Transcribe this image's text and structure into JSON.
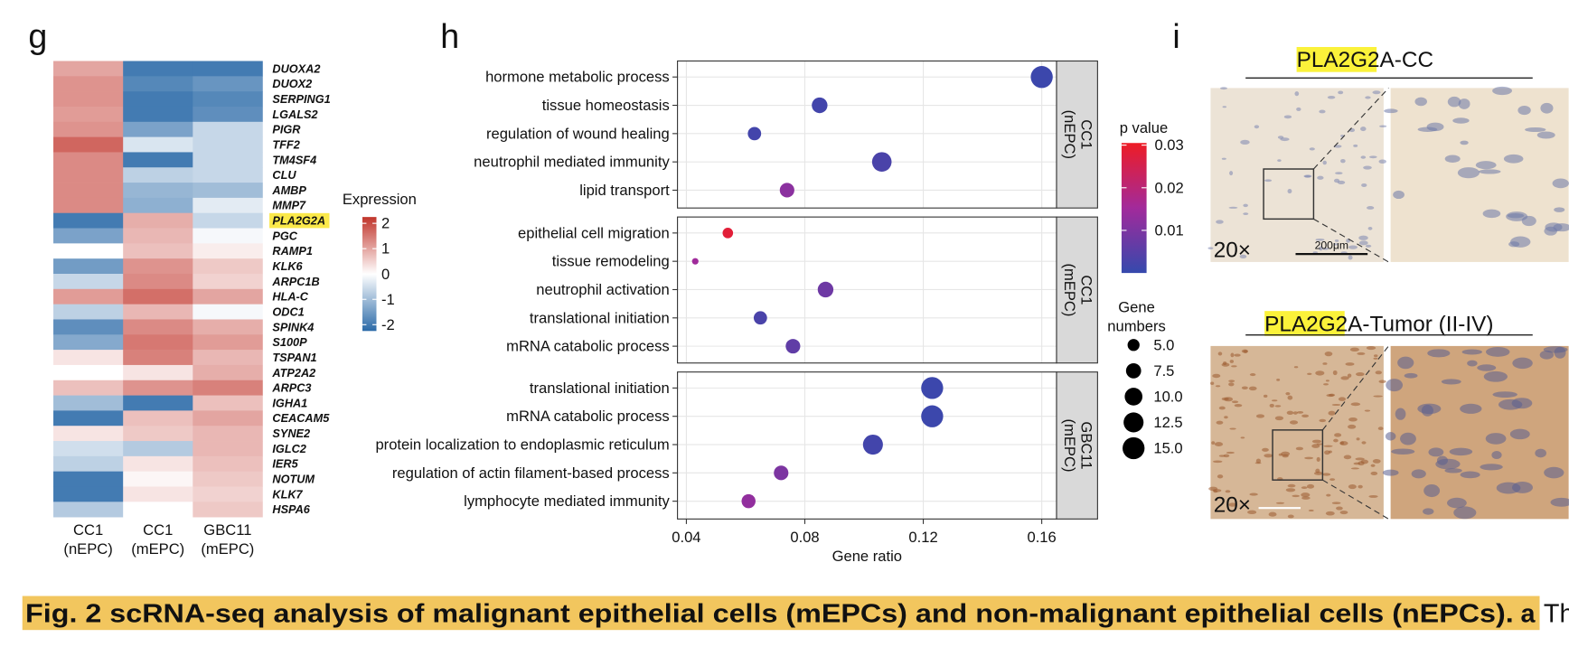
{
  "panel_labels": [
    "g",
    "h",
    "i"
  ],
  "chart_data": [
    {
      "type": "heatmap",
      "rows": [
        "DUOXA2",
        "DUOX2",
        "SERPING1",
        "LGALS2",
        "PIGR",
        "TFF2",
        "TM4SF4",
        "CLU",
        "AMBP",
        "MMP7",
        "PLA2G2A",
        "PGC",
        "RAMP1",
        "KLK6",
        "ARPC1B",
        "HLA-C",
        "ODC1",
        "SPINK4",
        "S100P",
        "TSPAN1",
        "ATP2A2",
        "ARPC3",
        "IGHA1",
        "CEACAM5",
        "SYNE2",
        "IGLC2",
        "IER5",
        "NOTUM",
        "KLK7",
        "HSPA6"
      ],
      "columns": [
        [
          "CC1",
          "(nEPC)"
        ],
        [
          "CC1",
          "(mEPC)"
        ],
        [
          "GBC11",
          "(mEPC)"
        ]
      ],
      "values": [
        [
          1.0,
          -2,
          -2
        ],
        [
          1.2,
          -1.8,
          -1.6
        ],
        [
          1.2,
          -2,
          -1.8
        ],
        [
          1.1,
          -2,
          -1.7
        ],
        [
          1.2,
          -1.4,
          -0.6
        ],
        [
          1.7,
          -0.4,
          -0.6
        ],
        [
          1.3,
          -2,
          -0.6
        ],
        [
          1.3,
          -0.7,
          -0.6
        ],
        [
          1.3,
          -1.1,
          -1.0
        ],
        [
          1.3,
          -1.2,
          -0.3
        ],
        [
          -2,
          0.9,
          -0.6
        ],
        [
          -1.4,
          0.8,
          -0.1
        ],
        [
          0,
          0.7,
          0.2
        ],
        [
          -1.5,
          1.2,
          0.6
        ],
        [
          -0.6,
          1.3,
          0.5
        ],
        [
          1.1,
          1.6,
          1.0
        ],
        [
          -0.7,
          0.8,
          -0.1
        ],
        [
          -1.7,
          1.3,
          0.9
        ],
        [
          -1.3,
          1.5,
          1.1
        ],
        [
          0.3,
          1.4,
          0.8
        ],
        [
          0,
          0.3,
          0.9
        ],
        [
          0.7,
          1.2,
          1.4
        ],
        [
          -1.0,
          -2,
          0.7
        ],
        [
          -2,
          0.7,
          1.0
        ],
        [
          0.3,
          0.6,
          0.8
        ],
        [
          -0.5,
          -0.8,
          0.8
        ],
        [
          -0.7,
          0.3,
          0.7
        ],
        [
          -2,
          0.1,
          0.6
        ],
        [
          -2,
          0.3,
          0.5
        ],
        [
          -0.8,
          0.0,
          0.6
        ]
      ],
      "highlight_row": 10,
      "legend_title": "Expression",
      "clim": [
        -2.25,
        2.25
      ],
      "cticks": [
        -2,
        -1,
        0,
        1,
        2
      ],
      "colors": [
        "#2b6aa8",
        "#ffffff",
        "#c1352b"
      ]
    },
    {
      "type": "dot",
      "facets": [
        {
          "label": [
            "CC1",
            "(nEPC)"
          ],
          "categories": [
            "hormone metabolic process",
            "tissue homeostasis",
            "regulation of wound healing",
            "neutrophil mediated immunity",
            "lipid transport"
          ],
          "x": [
            0.16,
            0.085,
            0.063,
            0.106,
            0.074
          ],
          "size": [
            15,
            8,
            6,
            12,
            7
          ],
          "p": [
            0.001,
            0.002,
            0.002,
            0.003,
            0.012
          ]
        },
        {
          "label": [
            "CC1",
            "(mEPC)"
          ],
          "categories": [
            "epithelial cell migration",
            "tissue remodeling",
            "neutrophil activation",
            "translational initiation",
            "mRNA catabolic process"
          ],
          "x": [
            0.054,
            0.043,
            0.087,
            0.065,
            0.076
          ],
          "size": [
            4,
            2,
            8,
            6,
            7
          ],
          "p": [
            0.028,
            0.015,
            0.008,
            0.003,
            0.006
          ]
        },
        {
          "label": [
            "GBC11",
            "(mEPC)"
          ],
          "categories": [
            "translational initiation",
            "mRNA catabolic process",
            "protein localization to endoplasmic reticulum",
            "regulation of actin filament-based process",
            "lymphocyte mediated immunity"
          ],
          "x": [
            0.123,
            0.123,
            0.103,
            0.072,
            0.061
          ],
          "size": [
            15,
            15,
            12.5,
            7,
            6.5
          ],
          "p": [
            0.001,
            0.001,
            0.002,
            0.01,
            0.013
          ]
        }
      ],
      "xlim": [
        0.037,
        0.165
      ],
      "xticks": [
        0.04,
        0.08,
        0.12,
        0.16
      ],
      "xlabel": "Gene ratio",
      "grid": true,
      "color_legend_title": "p value",
      "clim": [
        0,
        0.0305
      ],
      "cticks": [
        0.01,
        0.02,
        0.03
      ],
      "colors": [
        "#3549ad",
        "#a22a9b",
        "#ee1c25"
      ],
      "size_legend_title": [
        "Gene",
        "numbers"
      ],
      "size_ticks": [
        {
          "value": 5,
          "label": "5.0"
        },
        7.5,
        {
          "value": 10,
          "label": "10.0"
        },
        12.5,
        {
          "value": 15,
          "label": "15.0"
        }
      ]
    }
  ],
  "images": {
    "top_gene": "PLA2G2A",
    "top_rest": "-CC",
    "bottom_gene": "PLA2G2A",
    "bottom_rest": "-Tumor (II-IV)",
    "magnification": [
      "20×",
      "20×"
    ],
    "scale_bar": "200μm"
  },
  "caption": {
    "title": "Fig. 2 scRNA-seq analysis of malignant epithelial cells (mEPCs) and non-malignant epithelial cells (nEPCs).",
    "part_label": "a",
    "text": "Th"
  }
}
